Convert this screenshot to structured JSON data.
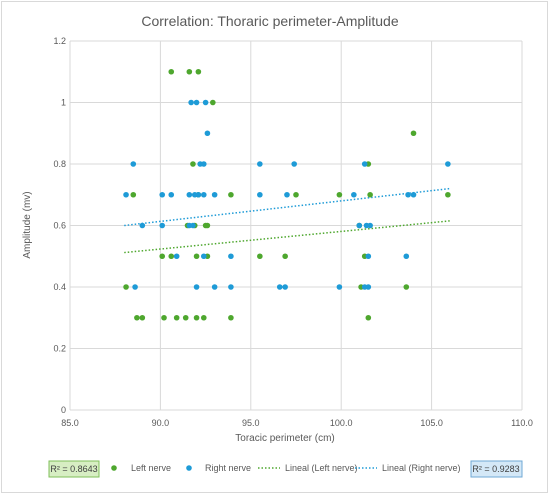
{
  "chart_data": {
    "type": "scatter",
    "title": "Correlation: Thoraric perimeter-Amplitude",
    "xlabel": "Toracic perimeter (cm)",
    "ylabel": "Amplitude (mv)",
    "xlim": [
      85,
      110
    ],
    "ylim": [
      0,
      1.2
    ],
    "x_ticks": [
      "85.0",
      "90.0",
      "95.0",
      "100.0",
      "105.0",
      "110.0"
    ],
    "y_ticks": [
      "0",
      "0.2",
      "0.4",
      "0.6",
      "0.8",
      "1",
      "1.2"
    ],
    "grid": "vertical and horizontal major gridlines",
    "legend_position": "bottom",
    "series": [
      {
        "name": "Left nerve",
        "color": "#4ea72e",
        "points": [
          [
            88.1,
            0.4
          ],
          [
            88.5,
            0.7
          ],
          [
            88.7,
            0.3
          ],
          [
            89.0,
            0.3
          ],
          [
            90.1,
            0.5
          ],
          [
            90.2,
            0.3
          ],
          [
            90.6,
            1.1
          ],
          [
            90.6,
            0.5
          ],
          [
            90.9,
            0.3
          ],
          [
            91.4,
            0.3
          ],
          [
            91.5,
            0.6
          ],
          [
            91.6,
            1.1
          ],
          [
            91.8,
            0.8
          ],
          [
            91.9,
            0.6
          ],
          [
            92.0,
            0.5
          ],
          [
            92.0,
            0.3
          ],
          [
            92.1,
            0.7
          ],
          [
            92.1,
            1.1
          ],
          [
            92.4,
            0.3
          ],
          [
            92.5,
            0.6
          ],
          [
            92.6,
            0.6
          ],
          [
            92.6,
            0.5
          ],
          [
            92.9,
            1.0
          ],
          [
            93.9,
            0.7
          ],
          [
            93.9,
            0.3
          ],
          [
            95.5,
            0.5
          ],
          [
            96.9,
            0.5
          ],
          [
            97.5,
            0.7
          ],
          [
            99.9,
            0.7
          ],
          [
            101.0,
            0.6
          ],
          [
            101.1,
            0.4
          ],
          [
            101.3,
            0.5
          ],
          [
            101.5,
            0.8
          ],
          [
            101.5,
            0.3
          ],
          [
            101.6,
            0.7
          ],
          [
            103.6,
            0.4
          ],
          [
            104.0,
            0.9
          ],
          [
            105.9,
            0.7
          ]
        ]
      },
      {
        "name": "Right nerve",
        "color": "#1e9bd7",
        "points": [
          [
            88.1,
            0.7
          ],
          [
            88.5,
            0.8
          ],
          [
            88.6,
            0.4
          ],
          [
            89.0,
            0.6
          ],
          [
            90.1,
            0.6
          ],
          [
            90.1,
            0.7
          ],
          [
            90.6,
            0.7
          ],
          [
            90.9,
            0.5
          ],
          [
            91.6,
            0.6
          ],
          [
            91.6,
            0.7
          ],
          [
            91.7,
            1.0
          ],
          [
            91.8,
            0.6
          ],
          [
            91.9,
            0.7
          ],
          [
            92.0,
            1.0
          ],
          [
            92.0,
            0.4
          ],
          [
            92.1,
            0.7
          ],
          [
            92.2,
            0.8
          ],
          [
            92.4,
            0.7
          ],
          [
            92.4,
            0.5
          ],
          [
            92.4,
            0.8
          ],
          [
            92.5,
            1.0
          ],
          [
            92.6,
            0.9
          ],
          [
            93.0,
            0.4
          ],
          [
            93.0,
            0.7
          ],
          [
            93.9,
            0.5
          ],
          [
            93.9,
            0.4
          ],
          [
            95.5,
            0.8
          ],
          [
            95.5,
            0.7
          ],
          [
            96.6,
            0.4
          ],
          [
            96.9,
            0.4
          ],
          [
            97.0,
            0.7
          ],
          [
            97.4,
            0.8
          ],
          [
            99.9,
            0.4
          ],
          [
            100.7,
            0.7
          ],
          [
            101.0,
            0.6
          ],
          [
            101.3,
            0.8
          ],
          [
            101.3,
            0.4
          ],
          [
            101.4,
            0.6
          ],
          [
            101.5,
            0.5
          ],
          [
            101.5,
            0.4
          ],
          [
            101.6,
            0.6
          ],
          [
            103.6,
            0.5
          ],
          [
            103.7,
            0.7
          ],
          [
            104.0,
            0.7
          ],
          [
            105.9,
            0.8
          ]
        ]
      }
    ],
    "trendlines": [
      {
        "name": "Lineal (Left nerve)",
        "color": "#4ea72e",
        "x": [
          88.0,
          106.0
        ],
        "y": [
          0.512,
          0.615
        ],
        "r2_label": "R² = 0.8643",
        "r2_bg": "#d7eec3",
        "r2_border": "#7fbf5a"
      },
      {
        "name": "Lineal (Right nerve)",
        "color": "#1e9bd7",
        "x": [
          88.0,
          106.0
        ],
        "y": [
          0.6,
          0.72
        ],
        "r2_label": "R² = 0.9283",
        "r2_bg": "#d4e8f7",
        "r2_border": "#6fa8d6"
      }
    ]
  }
}
